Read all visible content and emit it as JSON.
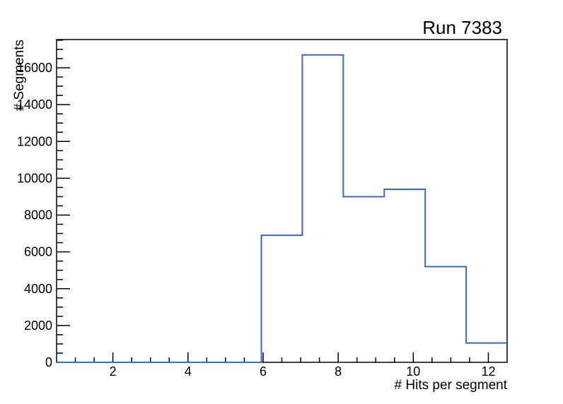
{
  "chart_data": {
    "type": "bar",
    "style": "step-histogram-outline",
    "title": "Run 7383",
    "xlabel": "# Hits per segment",
    "ylabel": "# Segments",
    "bin_edges": [
      0.5,
      1.5909,
      2.6818,
      3.7727,
      4.8636,
      5.9545,
      7.0455,
      8.1364,
      9.2273,
      10.3182,
      11.4091,
      12.5
    ],
    "values": [
      0,
      0,
      0,
      0,
      0,
      6900,
      16700,
      9000,
      9400,
      5200,
      1050
    ],
    "xlim": [
      0.5,
      12.5
    ],
    "ylim": [
      0,
      17535
    ],
    "x_major_ticks": [
      2,
      4,
      6,
      8,
      10,
      12
    ],
    "x_minor_step": 0.5,
    "y_major_ticks": [
      0,
      2000,
      4000,
      6000,
      8000,
      10000,
      12000,
      14000,
      16000
    ],
    "y_minor_step": 500,
    "grid": false,
    "tick_direction": "inside",
    "line_color": "#3a67c8",
    "axis_color": "#000000",
    "background_color": "#ffffff"
  }
}
